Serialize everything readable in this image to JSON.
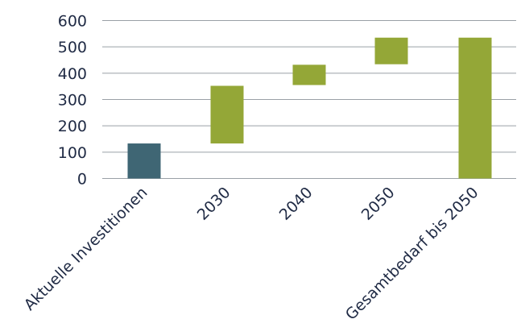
{
  "chart_data": {
    "type": "bar",
    "subtype": "waterfall",
    "title": "",
    "xlabel": "",
    "ylabel": "",
    "ylim": [
      0,
      600
    ],
    "yticks": [
      0,
      100,
      200,
      300,
      400,
      500,
      600
    ],
    "grid": true,
    "legend": "none",
    "categories": [
      "Aktuelle Investitionen",
      "2030",
      "2040",
      "2050",
      "Gesamtbedarf bis 2050"
    ],
    "bars": [
      {
        "category": "Aktuelle Investitionen",
        "start": 0,
        "end": 133,
        "color": "#3f6674"
      },
      {
        "category": "2030",
        "start": 133,
        "end": 352,
        "color": "#94a737"
      },
      {
        "category": "2040",
        "start": 355,
        "end": 432,
        "color": "#94a737"
      },
      {
        "category": "2050",
        "start": 434,
        "end": 535,
        "color": "#94a737"
      },
      {
        "category": "Gesamtbedarf bis 2050",
        "start": 0,
        "end": 535,
        "color": "#94a737"
      }
    ]
  }
}
